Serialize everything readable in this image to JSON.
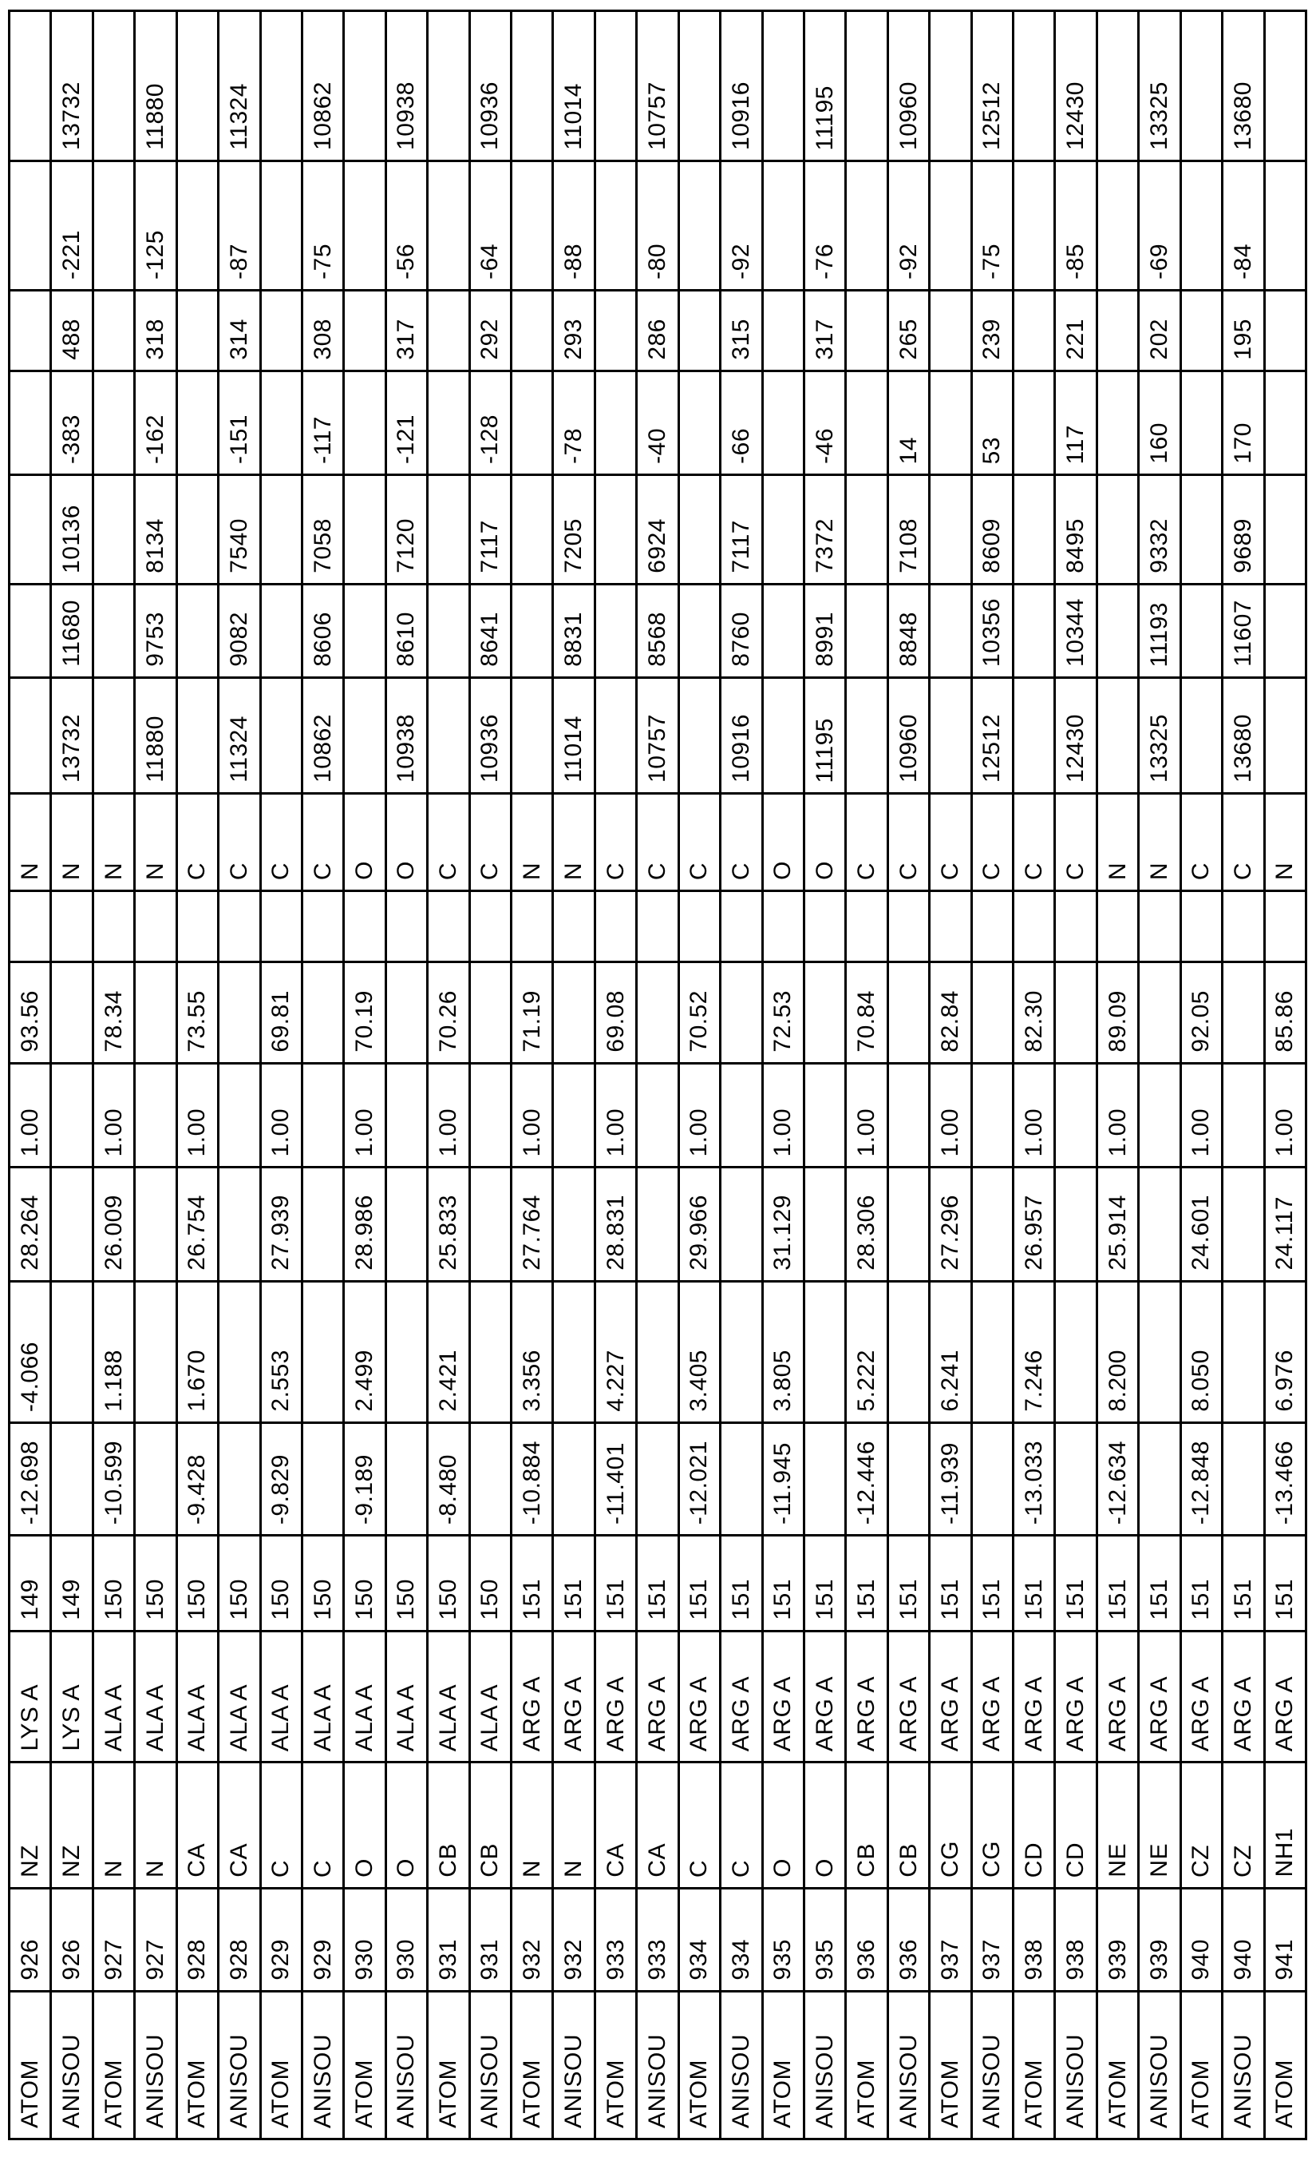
{
  "colors": {
    "background": "#ffffff",
    "text": "#000000",
    "grid_line": "#000000"
  },
  "table": {
    "description": "Rotated PDB coordinate table (text reads bottom-to-top). Columns in readable orientation: record type, serial, atom name, residue, residue number, x, y, z, occupancy, B-factor, blank, element, U11, U22, U33, U12, U13, U23, U11 repeated.",
    "records": [
      {
        "type": "ATOM",
        "serial": "926",
        "atom_name": "NZ",
        "residue": "LYS A",
        "res_seq": "149",
        "x": "-12.698",
        "y": "-4.066",
        "z": "28.264",
        "occupancy": "1.00",
        "b_factor": "93.56",
        "element": "N"
      },
      {
        "type": "ANISOU",
        "serial": "926",
        "atom_name": "NZ",
        "residue": "LYS A",
        "res_seq": "149",
        "u11": "13732",
        "u22": "11680",
        "u33": "10136",
        "u12": "-383",
        "u13": "488",
        "u23": "-221",
        "u11_repeat": "13732",
        "element": "N"
      },
      {
        "type": "ATOM",
        "serial": "927",
        "atom_name": "N",
        "residue": "ALA A",
        "res_seq": "150",
        "x": "-10.599",
        "y": "1.188",
        "z": "26.009",
        "occupancy": "1.00",
        "b_factor": "78.34",
        "element": "N"
      },
      {
        "type": "ANISOU",
        "serial": "927",
        "atom_name": "N",
        "residue": "ALA A",
        "res_seq": "150",
        "u11": "11880",
        "u22": "9753",
        "u33": "8134",
        "u12": "-162",
        "u13": "318",
        "u23": "-125",
        "u11_repeat": "11880",
        "element": "N"
      },
      {
        "type": "ATOM",
        "serial": "928",
        "atom_name": "CA",
        "residue": "ALA A",
        "res_seq": "150",
        "x": "-9.428",
        "y": "1.670",
        "z": "26.754",
        "occupancy": "1.00",
        "b_factor": "73.55",
        "element": "C"
      },
      {
        "type": "ANISOU",
        "serial": "928",
        "atom_name": "CA",
        "residue": "ALA A",
        "res_seq": "150",
        "u11": "11324",
        "u22": "9082",
        "u33": "7540",
        "u12": "-151",
        "u13": "314",
        "u23": "-87",
        "u11_repeat": "11324",
        "element": "C"
      },
      {
        "type": "ATOM",
        "serial": "929",
        "atom_name": "C",
        "residue": "ALA A",
        "res_seq": "150",
        "x": "-9.829",
        "y": "2.553",
        "z": "27.939",
        "occupancy": "1.00",
        "b_factor": "69.81",
        "element": "C"
      },
      {
        "type": "ANISOU",
        "serial": "929",
        "atom_name": "C",
        "residue": "ALA A",
        "res_seq": "150",
        "u11": "10862",
        "u22": "8606",
        "u33": "7058",
        "u12": "-117",
        "u13": "308",
        "u23": "-75",
        "u11_repeat": "10862",
        "element": "C"
      },
      {
        "type": "ATOM",
        "serial": "930",
        "atom_name": "O",
        "residue": "ALA A",
        "res_seq": "150",
        "x": "-9.189",
        "y": "2.499",
        "z": "28.986",
        "occupancy": "1.00",
        "b_factor": "70.19",
        "element": "O"
      },
      {
        "type": "ANISOU",
        "serial": "930",
        "atom_name": "O",
        "residue": "ALA A",
        "res_seq": "150",
        "u11": "10938",
        "u22": "8610",
        "u33": "7120",
        "u12": "-121",
        "u13": "317",
        "u23": "-56",
        "u11_repeat": "10938",
        "element": "O"
      },
      {
        "type": "ATOM",
        "serial": "931",
        "atom_name": "CB",
        "residue": "ALA A",
        "res_seq": "150",
        "x": "-8.480",
        "y": "2.421",
        "z": "25.833",
        "occupancy": "1.00",
        "b_factor": "70.26",
        "element": "C"
      },
      {
        "type": "ANISOU",
        "serial": "931",
        "atom_name": "CB",
        "residue": "ALA A",
        "res_seq": "150",
        "u11": "10936",
        "u22": "8641",
        "u33": "7117",
        "u12": "-128",
        "u13": "292",
        "u23": "-64",
        "u11_repeat": "10936",
        "element": "C"
      },
      {
        "type": "ATOM",
        "serial": "932",
        "atom_name": "N",
        "residue": "ARG A",
        "res_seq": "151",
        "x": "-10.884",
        "y": "3.356",
        "z": "27.764",
        "occupancy": "1.00",
        "b_factor": "71.19",
        "element": "N"
      },
      {
        "type": "ANISOU",
        "serial": "932",
        "atom_name": "N",
        "residue": "ARG A",
        "res_seq": "151",
        "u11": "11014",
        "u22": "8831",
        "u33": "7205",
        "u12": "-78",
        "u13": "293",
        "u23": "-88",
        "u11_repeat": "11014",
        "element": "N"
      },
      {
        "type": "ATOM",
        "serial": "933",
        "atom_name": "CA",
        "residue": "ARG A",
        "res_seq": "151",
        "x": "-11.401",
        "y": "4.227",
        "z": "28.831",
        "occupancy": "1.00",
        "b_factor": "69.08",
        "element": "C"
      },
      {
        "type": "ANISOU",
        "serial": "933",
        "atom_name": "CA",
        "residue": "ARG A",
        "res_seq": "151",
        "u11": "10757",
        "u22": "8568",
        "u33": "6924",
        "u12": "-40",
        "u13": "286",
        "u23": "-80",
        "u11_repeat": "10757",
        "element": "C"
      },
      {
        "type": "ATOM",
        "serial": "934",
        "atom_name": "C",
        "residue": "ARG A",
        "res_seq": "151",
        "x": "-12.021",
        "y": "3.405",
        "z": "29.966",
        "occupancy": "1.00",
        "b_factor": "70.52",
        "element": "C"
      },
      {
        "type": "ANISOU",
        "serial": "934",
        "atom_name": "C",
        "residue": "ARG A",
        "res_seq": "151",
        "u11": "10916",
        "u22": "8760",
        "u33": "7117",
        "u12": "-66",
        "u13": "315",
        "u23": "-92",
        "u11_repeat": "10916",
        "element": "C"
      },
      {
        "type": "ATOM",
        "serial": "935",
        "atom_name": "O",
        "residue": "ARG A",
        "res_seq": "151",
        "x": "-11.945",
        "y": "3.805",
        "z": "31.129",
        "occupancy": "1.00",
        "b_factor": "72.53",
        "element": "O"
      },
      {
        "type": "ANISOU",
        "serial": "935",
        "atom_name": "O",
        "residue": "ARG A",
        "res_seq": "151",
        "u11": "11195",
        "u22": "8991",
        "u33": "7372",
        "u12": "-46",
        "u13": "317",
        "u23": "-76",
        "u11_repeat": "11195",
        "element": "O"
      },
      {
        "type": "ATOM",
        "serial": "936",
        "atom_name": "CB",
        "residue": "ARG A",
        "res_seq": "151",
        "x": "-12.446",
        "y": "5.222",
        "z": "28.306",
        "occupancy": "1.00",
        "b_factor": "70.84",
        "element": "C"
      },
      {
        "type": "ANISOU",
        "serial": "936",
        "atom_name": "CB",
        "residue": "ARG A",
        "res_seq": "151",
        "u11": "10960",
        "u22": "8848",
        "u33": "7108",
        "u12": "14",
        "u13": "265",
        "u23": "-92",
        "u11_repeat": "10960",
        "element": "C"
      },
      {
        "type": "ATOM",
        "serial": "937",
        "atom_name": "CG",
        "residue": "ARG A",
        "res_seq": "151",
        "x": "-11.939",
        "y": "6.241",
        "z": "27.296",
        "occupancy": "1.00",
        "b_factor": "82.84",
        "element": "C"
      },
      {
        "type": "ANISOU",
        "serial": "937",
        "atom_name": "CG",
        "residue": "ARG A",
        "res_seq": "151",
        "u11": "12512",
        "u22": "10356",
        "u33": "8609",
        "u12": "53",
        "u13": "239",
        "u23": "-75",
        "u11_repeat": "12512",
        "element": "C"
      },
      {
        "type": "ATOM",
        "serial": "938",
        "atom_name": "CD",
        "residue": "ARG A",
        "res_seq": "151",
        "x": "-13.033",
        "y": "7.246",
        "z": "26.957",
        "occupancy": "1.00",
        "b_factor": "82.30",
        "element": "C"
      },
      {
        "type": "ANISOU",
        "serial": "938",
        "atom_name": "CD",
        "residue": "ARG A",
        "res_seq": "151",
        "u11": "12430",
        "u22": "10344",
        "u33": "8495",
        "u12": "117",
        "u13": "221",
        "u23": "-85",
        "u11_repeat": "12430",
        "element": "C"
      },
      {
        "type": "ATOM",
        "serial": "939",
        "atom_name": "NE",
        "residue": "ARG A",
        "res_seq": "151",
        "x": "-12.634",
        "y": "8.200",
        "z": "25.914",
        "occupancy": "1.00",
        "b_factor": "89.09",
        "element": "N"
      },
      {
        "type": "ANISOU",
        "serial": "939",
        "atom_name": "NE",
        "residue": "ARG A",
        "res_seq": "151",
        "u11": "13325",
        "u22": "11193",
        "u33": "9332",
        "u12": "160",
        "u13": "202",
        "u23": "-69",
        "u11_repeat": "13325",
        "element": "N"
      },
      {
        "type": "ATOM",
        "serial": "940",
        "atom_name": "CZ",
        "residue": "ARG A",
        "res_seq": "151",
        "x": "-12.848",
        "y": "8.050",
        "z": "24.601",
        "occupancy": "1.00",
        "b_factor": "92.05",
        "element": "C"
      },
      {
        "type": "ANISOU",
        "serial": "940",
        "atom_name": "CZ",
        "residue": "ARG A",
        "res_seq": "151",
        "u11": "13680",
        "u22": "11607",
        "u33": "9689",
        "u12": "170",
        "u13": "195",
        "u23": "-84",
        "u11_repeat": "13680",
        "element": "C"
      },
      {
        "type": "ATOM",
        "serial": "941",
        "atom_name": "NH1",
        "residue": "ARG A",
        "res_seq": "151",
        "x": "-13.466",
        "y": "6.976",
        "z": "24.117",
        "occupancy": "1.00",
        "b_factor": "85.86",
        "element": "N"
      }
    ]
  }
}
